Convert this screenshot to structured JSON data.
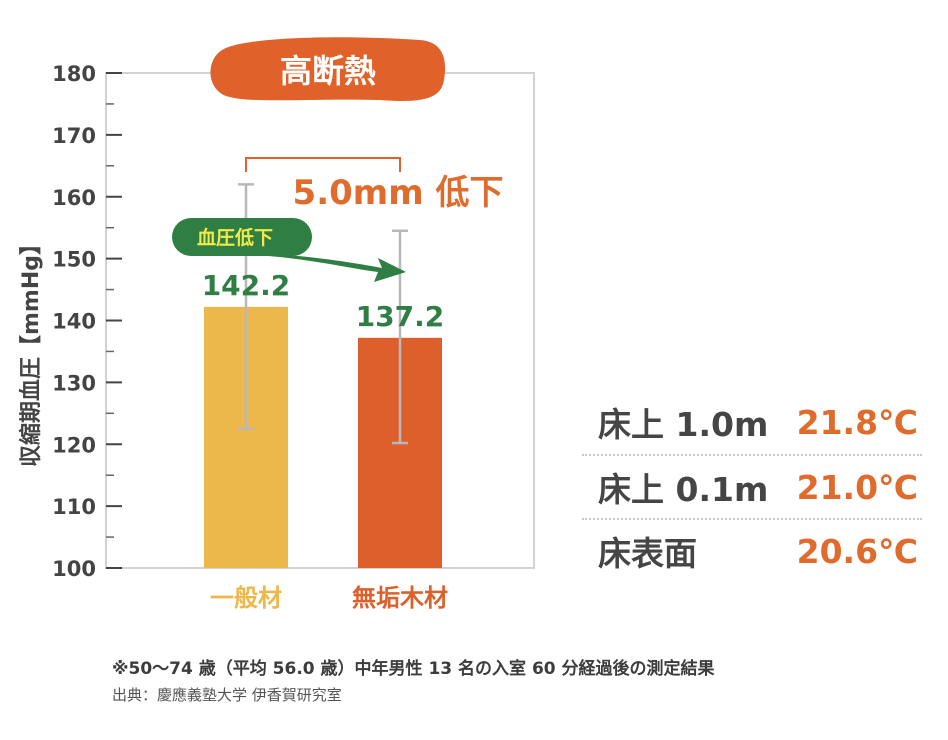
{
  "chart_data": {
    "type": "bar",
    "title": "高断熱",
    "ylabel": "収縮期血圧【mmHg】",
    "ylim": [
      100,
      180
    ],
    "yticks": [
      100,
      110,
      120,
      130,
      140,
      150,
      160,
      170,
      180
    ],
    "categories": [
      "一般材",
      "無垢木材"
    ],
    "values": [
      142.2,
      137.2
    ],
    "value_labels": [
      "142.2",
      "137.2"
    ],
    "error_bars": [
      [
        122.5,
        162.0
      ],
      [
        120.2,
        154.5
      ]
    ],
    "annotation_arrow": "血圧低下",
    "annotation_diff": "5.0mm 低下",
    "grid": false
  },
  "colors": {
    "bar_general": "#edb84b",
    "bar_wood": "#dd602c",
    "accent_orange": "#df6b2c",
    "green": "#2f7e44",
    "error_bar": "#b8b8b8",
    "title_bg": "#e0622a"
  },
  "temperatures": [
    {
      "label": "床上 1.0m",
      "value": "21.8℃"
    },
    {
      "label": "床上 0.1m",
      "value": "21.0℃"
    },
    {
      "label": "床表面",
      "value": "20.6℃"
    }
  ],
  "footnote": "※50〜74 歳（平均 56.0 歳）中年男性 13 名の入室 60 分経過後の測定結果",
  "source": "出典：慶應義塾大学 伊香賀研究室"
}
